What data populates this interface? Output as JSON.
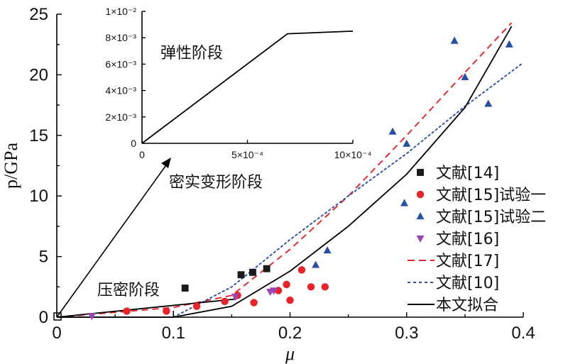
{
  "chart_data": [
    {
      "type": "scatter",
      "xlabel": "μ",
      "ylabel": "p/GPa",
      "xlim": [
        0,
        0.4
      ],
      "ylim": [
        0,
        25
      ],
      "x_ticks": [
        "0",
        "0.1",
        "0.2",
        "0.3",
        "0.4"
      ],
      "y_ticks": [
        "0",
        "5",
        "10",
        "15",
        "20",
        "25"
      ],
      "annotations": [
        "压密阶段",
        "密实变形阶段"
      ],
      "legend_position": "right",
      "series": [
        {
          "name": "文献[14]",
          "kind": "scatter",
          "marker": "square",
          "color": "#1a1a1a",
          "points": [
            [
              0.11,
              2.4
            ],
            [
              0.158,
              3.5
            ],
            [
              0.168,
              3.7
            ],
            [
              0.18,
              4.0
            ]
          ]
        },
        {
          "name": "文献[15]试验一",
          "kind": "scatter",
          "marker": "circle",
          "color": "#e8232a",
          "points": [
            [
              0.06,
              0.5
            ],
            [
              0.094,
              0.5
            ],
            [
              0.12,
              0.9
            ],
            [
              0.144,
              1.3
            ],
            [
              0.155,
              1.8
            ],
            [
              0.169,
              1.2
            ],
            [
              0.19,
              2.2
            ],
            [
              0.197,
              2.7
            ],
            [
              0.2,
              1.4
            ],
            [
              0.21,
              3.9
            ],
            [
              0.218,
              2.5
            ],
            [
              0.23,
              2.5
            ]
          ]
        },
        {
          "name": "文献[15]试验二",
          "kind": "scatter",
          "marker": "triangle-up",
          "color": "#2a4fa6",
          "points": [
            [
              0.222,
              4.3
            ],
            [
              0.232,
              5.5
            ],
            [
              0.288,
              15.3
            ],
            [
              0.298,
              9.4
            ],
            [
              0.3,
              14.3
            ],
            [
              0.341,
              22.8
            ],
            [
              0.35,
              19.8
            ],
            [
              0.37,
              17.6
            ],
            [
              0.388,
              22.5
            ]
          ]
        },
        {
          "name": "文献[16]",
          "kind": "scatter",
          "marker": "triangle-down",
          "color": "#9b44b8",
          "points": [
            [
              0.03,
              0.1
            ],
            [
              0.153,
              1.7
            ],
            [
              0.183,
              2.1
            ],
            [
              0.186,
              2.2
            ]
          ]
        },
        {
          "name": "文献[17]",
          "kind": "line",
          "style": "dashed",
          "color": "#e8232a",
          "points": [
            [
              0,
              0
            ],
            [
              0.1,
              0.8
            ],
            [
              0.15,
              1.8
            ],
            [
              0.2,
              5.6
            ],
            [
              0.25,
              10.0
            ],
            [
              0.3,
              15.0
            ],
            [
              0.35,
              20.2
            ],
            [
              0.39,
              24.3
            ]
          ]
        },
        {
          "name": "文献[10]",
          "kind": "line",
          "style": "dotted",
          "color": "#2a4fa6",
          "points": [
            [
              0.1,
              0.0
            ],
            [
              0.12,
              1.0
            ],
            [
              0.15,
              2.5
            ],
            [
              0.2,
              6.4
            ],
            [
              0.25,
              10.0
            ],
            [
              0.3,
              13.5
            ],
            [
              0.35,
              17.4
            ],
            [
              0.4,
              21.0
            ]
          ]
        },
        {
          "name": "本文拟合",
          "kind": "line",
          "style": "solid",
          "color": "#000000",
          "points": [
            [
              0,
              0
            ],
            [
              0.1,
              0.0
            ],
            [
              0.15,
              0.9
            ],
            [
              0.2,
              3.8
            ],
            [
              0.25,
              7.5
            ],
            [
              0.3,
              11.8
            ],
            [
              0.35,
              17.3
            ],
            [
              0.39,
              24.0
            ]
          ]
        },
        {
          "name": "",
          "kind": "line",
          "style": "solid",
          "color": "#000000",
          "points": [
            [
              0,
              0
            ],
            [
              0.154,
              1.5
            ]
          ]
        }
      ]
    },
    {
      "type": "line",
      "title": "弹性阶段",
      "xlim": [
        0,
        0.001
      ],
      "ylim": [
        0,
        0.01
      ],
      "x_ticks": [
        "0",
        "5×10⁻⁴",
        "10×10⁻⁴"
      ],
      "y_ticks": [
        "0",
        "2×10⁻³",
        "4×10⁻³",
        "6×10⁻³",
        "8×10⁻³",
        "1×10⁻²"
      ],
      "series": [
        {
          "name": "",
          "color": "#000000",
          "points": [
            [
              0,
              0
            ],
            [
              0.00069,
              0.0083
            ],
            [
              0.001,
              0.0085
            ]
          ]
        }
      ]
    }
  ],
  "legend": [
    {
      "label": "文献[14]",
      "marker": "square",
      "color": "#1a1a1a"
    },
    {
      "label": "文献[15]试验一",
      "marker": "circle",
      "color": "#e8232a"
    },
    {
      "label": "文献[15]试验二",
      "marker": "triangle-up",
      "color": "#2a4fa6"
    },
    {
      "label": "文献[16]",
      "marker": "triangle-down",
      "color": "#9b44b8"
    },
    {
      "label": "文献[17]",
      "marker": "dashed",
      "color": "#e8232a"
    },
    {
      "label": "文献[10]",
      "marker": "dotted",
      "color": "#2a4fa6"
    },
    {
      "label": "本文拟合",
      "marker": "solid",
      "color": "#000000"
    }
  ]
}
